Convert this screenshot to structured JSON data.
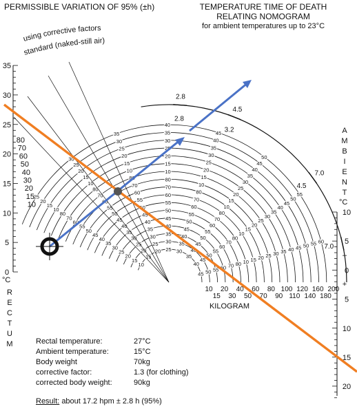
{
  "header": {
    "left_title": "PERMISSIBLE VARIATION OF 95% (±h)",
    "right_title_line1": "TEMPERATURE TIME OF DEATH",
    "right_title_line2": "RELATING NOMOGRAM",
    "right_subtitle": "for ambient temperatures up to 23°C"
  },
  "arc_labels": {
    "corrective": "using corrective factors",
    "standard": "standard (naked-still air)"
  },
  "variation_values": [
    "2.8",
    "3.2",
    "4.5",
    "7.0"
  ],
  "variation_values_outer": [
    "2.8",
    "4.5",
    "7.0"
  ],
  "weights_kg": [
    "10",
    "15",
    "20",
    "30",
    "40",
    "50",
    "60",
    "70",
    "80",
    "90",
    "100",
    "110",
    "120",
    "140",
    "160",
    "180",
    "200"
  ],
  "weight_label": "KILOGRAM",
  "arc_hour_values": [
    "10",
    "15",
    "20",
    "25",
    "30",
    "35",
    "40",
    "45",
    "50",
    "55",
    "60",
    "70",
    "80"
  ],
  "rectum_scale": {
    "ticks": [
      "35",
      "30",
      "25",
      "20",
      "15",
      "10",
      "5",
      "0"
    ],
    "unit": "°C",
    "letters": [
      "R",
      "E",
      "C",
      "T",
      "U",
      "M"
    ]
  },
  "inner_rectal_ticks": [
    "80",
    "70",
    "60",
    "50",
    "40",
    "30",
    "20",
    "15",
    "10"
  ],
  "ambient_scale": {
    "letters": [
      "A",
      "M",
      "B",
      "I",
      "E",
      "N",
      "T"
    ],
    "unit": "°C",
    "ticks": [
      "10",
      "5",
      "0",
      "5",
      "10",
      "15",
      "20"
    ],
    "signs": [
      "–",
      "+"
    ]
  },
  "example": {
    "rows": [
      {
        "label": "Rectal temperature:",
        "value": "27°C"
      },
      {
        "label": "Ambient temperature:",
        "value": "15°C"
      },
      {
        "label": "Body weight",
        "value": "70kg"
      },
      {
        "label": "corrective factor:",
        "value": "1.3 (for clothing)"
      },
      {
        "label": "corrected body weight:",
        "value": "90kg"
      }
    ],
    "result_label": "Result:",
    "result_value": "about 17.2 hpm ± 2.8 h (95%)"
  },
  "colors": {
    "orange_line": "#f07e22",
    "blue_arrow": "#4a72c6",
    "ink": "#111111"
  },
  "icons": [
    "circle-cross-marker-icon"
  ]
}
